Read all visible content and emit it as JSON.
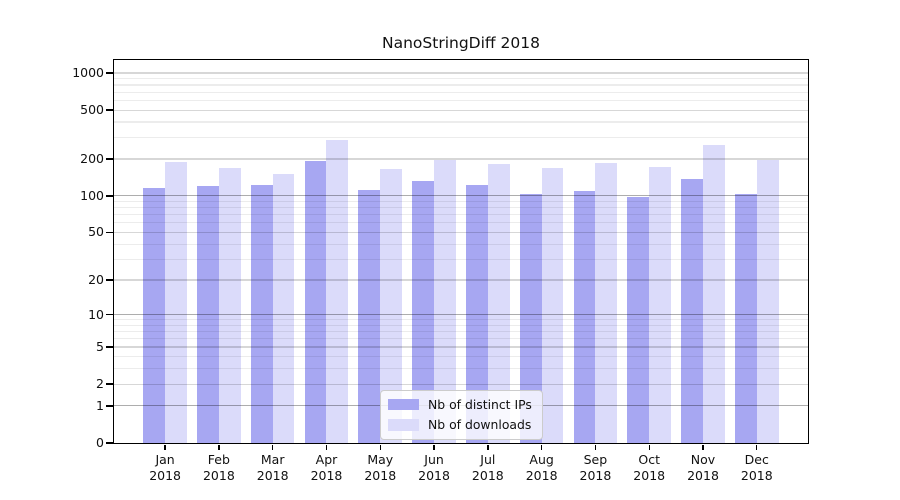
{
  "title": "NanoStringDiff 2018",
  "chart_data": {
    "type": "bar",
    "title": "NanoStringDiff 2018",
    "categories": [
      "Jan",
      "Feb",
      "Mar",
      "Apr",
      "May",
      "Jun",
      "Jul",
      "Aug",
      "Sep",
      "Oct",
      "Nov",
      "Dec"
    ],
    "x_year": "2018",
    "series": [
      {
        "name": "Nb of distinct IPs",
        "color": "#a7a7f2",
        "values": [
          117,
          120,
          122,
          191,
          112,
          133,
          123,
          104,
          109,
          97,
          137,
          103
        ]
      },
      {
        "name": "Nb of downloads",
        "color": "#dbdbfa",
        "values": [
          189,
          168,
          151,
          287,
          166,
          195,
          183,
          168,
          186,
          171,
          258,
          197
        ]
      }
    ],
    "y_axis": {
      "ticks": [
        0,
        1,
        2,
        5,
        10,
        20,
        50,
        100,
        200,
        500,
        1000
      ],
      "scale": "log10(value+1)",
      "ylim": [
        0,
        1280
      ]
    },
    "legend": {
      "position": "bottom-center",
      "entries": [
        "Nb of distinct IPs",
        "Nb of downloads"
      ]
    },
    "grid": "on"
  }
}
